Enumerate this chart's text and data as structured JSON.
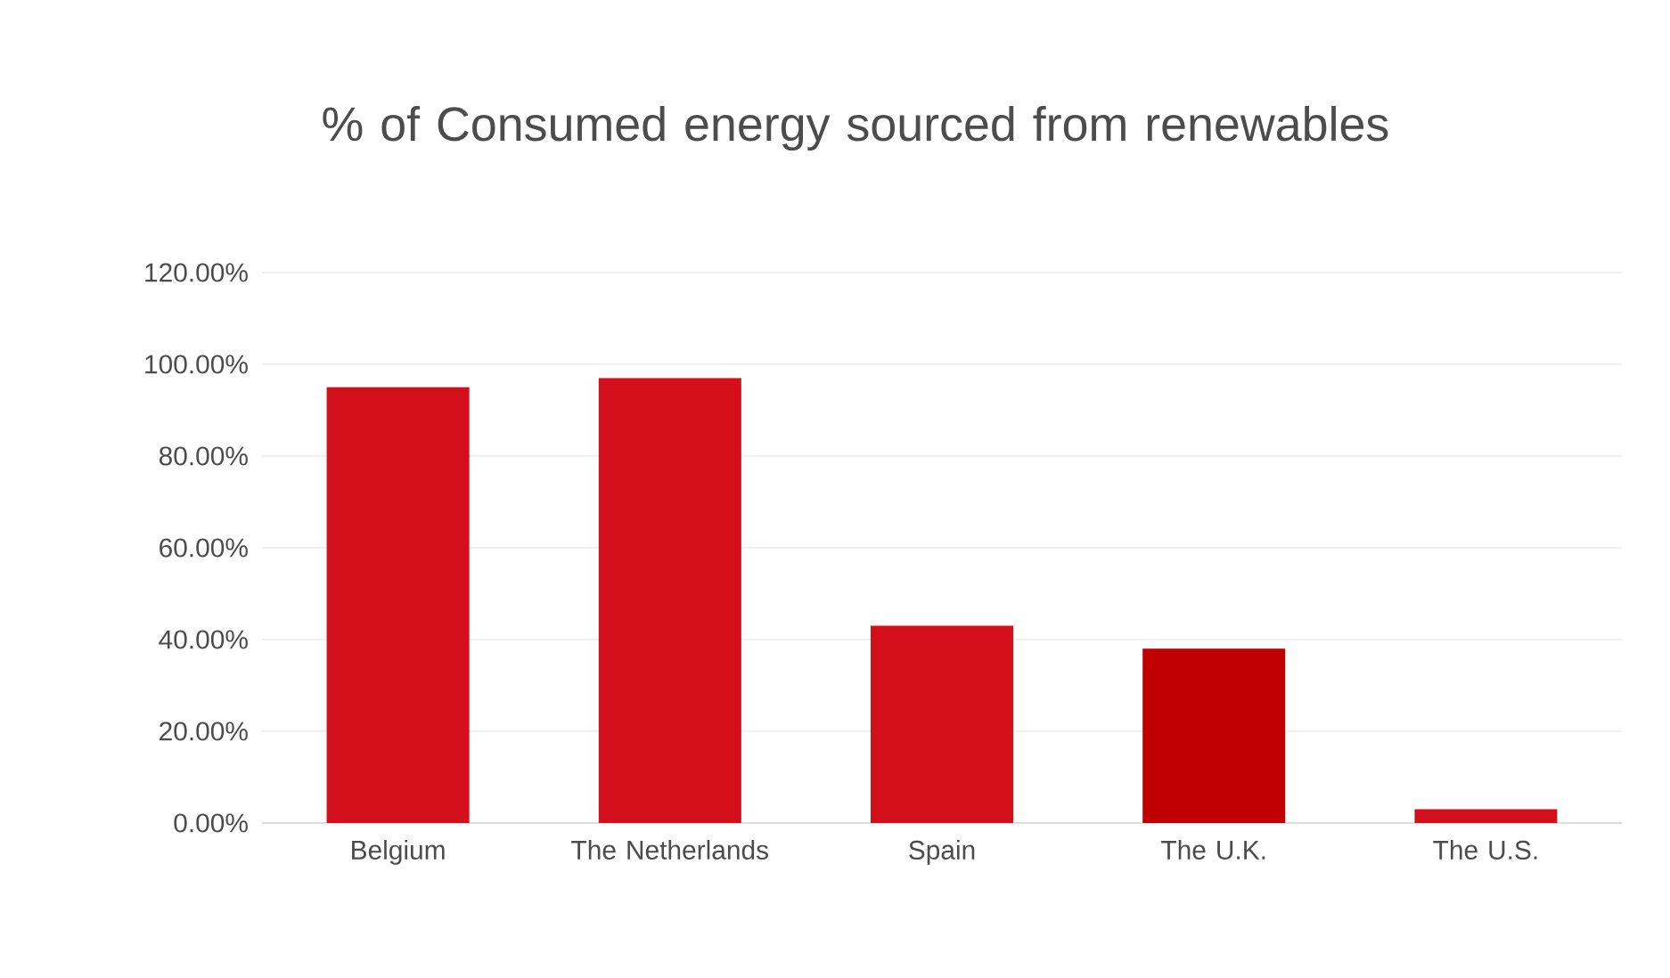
{
  "chart_data": {
    "type": "bar",
    "title": "% of Consumed energy sourced from renewables",
    "categories": [
      "Belgium",
      "The Netherlands",
      "Spain",
      "The U.K.",
      "The U.S."
    ],
    "values": [
      95,
      97,
      43,
      38,
      3
    ],
    "colors": [
      "#d20f1a",
      "#d20f1a",
      "#d20f1a",
      "#c00000",
      "#d20f1a"
    ],
    "ylim": [
      0,
      120
    ],
    "yticks": [
      {
        "value": 0,
        "label": "0.00%"
      },
      {
        "value": 20,
        "label": "20.00%"
      },
      {
        "value": 40,
        "label": "40.00%"
      },
      {
        "value": 60,
        "label": "60.00%"
      },
      {
        "value": 80,
        "label": "80.00%"
      },
      {
        "value": 100,
        "label": "100.00%"
      },
      {
        "value": 120,
        "label": "120.00%"
      }
    ],
    "grid": true
  }
}
